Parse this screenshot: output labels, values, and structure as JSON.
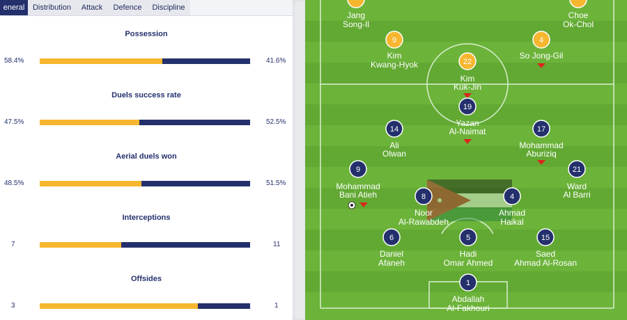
{
  "tabs": [
    "General",
    "Distribution",
    "Attack",
    "Defence",
    "Discipline"
  ],
  "tab_display": [
    "eneral",
    "Distribution",
    "Attack",
    "Defence",
    "Discipline"
  ],
  "stats": [
    {
      "title": "Possession",
      "home": "58.4%",
      "away": "41.6%",
      "home_share": 0.584
    },
    {
      "title": "Duels success rate",
      "home": "47.5%",
      "away": "52.5%",
      "home_share": 0.475
    },
    {
      "title": "Aerial duels won",
      "home": "48.5%",
      "away": "51.5%",
      "home_share": 0.485
    },
    {
      "title": "Interceptions",
      "home": "7",
      "away": "11",
      "home_share": 0.389
    },
    {
      "title": "Offsides",
      "home": "3",
      "away": "1",
      "home_share": 0.75
    }
  ],
  "colors": {
    "home": "#f6b72f",
    "away": "#24306c",
    "pitch_light": "#6cb33a",
    "pitch_dark": "#62a933",
    "sub_arrow": "#d9261c"
  },
  "players": {
    "p_jang": {
      "number": "",
      "name1": "Jang",
      "name2": "Song-Il",
      "team": "home"
    },
    "p_choe": {
      "number": "",
      "name1": "Choe",
      "name2": "Ok-Chol",
      "team": "home"
    },
    "p9h": {
      "number": "9",
      "name1": "Kim",
      "name2": "Kwang-Hyok",
      "team": "home"
    },
    "p4h": {
      "number": "4",
      "name1": "So Jong-Gil",
      "name2": "",
      "team": "home"
    },
    "p22": {
      "number": "22",
      "name1": "Kim",
      "name2": "Kuk-Jin",
      "team": "home"
    },
    "p19": {
      "number": "19",
      "name1": "Yazan",
      "name2": "Al-Naimat",
      "team": "away"
    },
    "p14": {
      "number": "14",
      "name1": "Ali",
      "name2": "Olwan",
      "team": "away"
    },
    "p17": {
      "number": "17",
      "name1": "Mohammad",
      "name2": "Aburiziq",
      "team": "away"
    },
    "p9a": {
      "number": "9",
      "name1": "Mohammad",
      "name2": "Bani Atieh",
      "team": "away"
    },
    "p21": {
      "number": "21",
      "name1": "Ward",
      "name2": "Al Barri",
      "team": "away"
    },
    "p8": {
      "number": "8",
      "name1": "Noor",
      "name2": "Al-Rawabdeh",
      "team": "away"
    },
    "p4a": {
      "number": "4",
      "name1": "Ahmad",
      "name2": "Haikal",
      "team": "away"
    },
    "p6": {
      "number": "6",
      "name1": "Daniel",
      "name2": "Afaneh",
      "team": "away"
    },
    "p5": {
      "number": "5",
      "name1": "Hadi",
      "name2": "Omar Ahmed",
      "team": "away"
    },
    "p15": {
      "number": "15",
      "name1": "Saed",
      "name2": "Ahmad Al-Rosan",
      "team": "away"
    },
    "p1": {
      "number": "1",
      "name1": "Abdallah",
      "name2": "Al-Fakhouri",
      "team": "away"
    }
  }
}
